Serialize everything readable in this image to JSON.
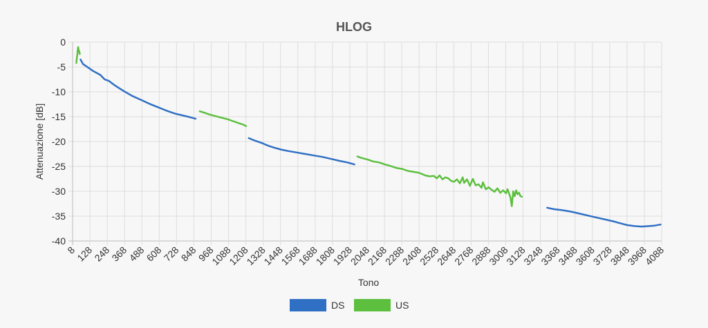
{
  "chart_data": {
    "type": "line",
    "title": "HLOG",
    "xlabel": "Tono",
    "ylabel": "Attenuazione [dB]",
    "xlim": [
      8,
      4088
    ],
    "ylim": [
      -40,
      0
    ],
    "x_ticks": [
      8,
      128,
      248,
      368,
      488,
      608,
      728,
      848,
      968,
      1088,
      1208,
      1328,
      1448,
      1568,
      1688,
      1808,
      1928,
      2048,
      2168,
      2288,
      2408,
      2528,
      2648,
      2768,
      2888,
      3008,
      3128,
      3248,
      3368,
      3488,
      3608,
      3728,
      3848,
      3968,
      4088
    ],
    "y_ticks": [
      0,
      -5,
      -10,
      -15,
      -20,
      -25,
      -30,
      -35,
      -40
    ],
    "grid": true,
    "legend_position": "bottom",
    "series": [
      {
        "name": "DS",
        "color": "#2f6fc4",
        "segments": [
          [
            [
              63,
              -3.5
            ],
            [
              80,
              -4.4
            ],
            [
              110,
              -5.0
            ],
            [
              150,
              -5.8
            ],
            [
              200,
              -6.6
            ],
            [
              230,
              -7.5
            ],
            [
              260,
              -7.8
            ],
            [
              300,
              -8.7
            ],
            [
              360,
              -9.8
            ],
            [
              420,
              -10.8
            ],
            [
              480,
              -11.6
            ],
            [
              540,
              -12.4
            ],
            [
              600,
              -13.1
            ],
            [
              660,
              -13.8
            ],
            [
              720,
              -14.4
            ],
            [
              780,
              -14.8
            ],
            [
              820,
              -15.1
            ],
            [
              860,
              -15.4
            ]
          ],
          [
            [
              1228,
              -19.3
            ],
            [
              1270,
              -19.8
            ],
            [
              1320,
              -20.3
            ],
            [
              1360,
              -20.8
            ],
            [
              1400,
              -21.2
            ],
            [
              1450,
              -21.6
            ],
            [
              1500,
              -21.9
            ],
            [
              1560,
              -22.2
            ],
            [
              1620,
              -22.5
            ],
            [
              1680,
              -22.8
            ],
            [
              1740,
              -23.1
            ],
            [
              1800,
              -23.5
            ],
            [
              1860,
              -23.9
            ],
            [
              1910,
              -24.2
            ],
            [
              1960,
              -24.6
            ]
          ],
          [
            [
              3295,
              -33.3
            ],
            [
              3340,
              -33.6
            ],
            [
              3400,
              -33.8
            ],
            [
              3460,
              -34.1
            ],
            [
              3520,
              -34.5
            ],
            [
              3580,
              -34.9
            ],
            [
              3640,
              -35.3
            ],
            [
              3700,
              -35.7
            ],
            [
              3760,
              -36.1
            ],
            [
              3810,
              -36.5
            ],
            [
              3850,
              -36.8
            ],
            [
              3900,
              -37.0
            ],
            [
              3950,
              -37.1
            ],
            [
              4000,
              -37.0
            ],
            [
              4040,
              -36.9
            ],
            [
              4080,
              -36.7
            ]
          ]
        ]
      },
      {
        "name": "US",
        "color": "#5cbf3e",
        "segments": [
          [
            [
              34,
              -4.2
            ],
            [
              38,
              -3.0
            ],
            [
              41,
              -2.5
            ],
            [
              44,
              -1.4
            ],
            [
              47,
              -1.0
            ],
            [
              50,
              -1.7
            ],
            [
              54,
              -1.8
            ],
            [
              58,
              -2.4
            ]
          ],
          [
            [
              888,
              -13.9
            ],
            [
              920,
              -14.2
            ],
            [
              960,
              -14.6
            ],
            [
              1000,
              -14.9
            ],
            [
              1040,
              -15.2
            ],
            [
              1080,
              -15.5
            ],
            [
              1120,
              -15.9
            ],
            [
              1160,
              -16.3
            ],
            [
              1190,
              -16.6
            ],
            [
              1210,
              -16.9
            ]
          ],
          [
            [
              1980,
              -23.0
            ],
            [
              2010,
              -23.3
            ],
            [
              2050,
              -23.6
            ],
            [
              2090,
              -24.0
            ],
            [
              2130,
              -24.2
            ],
            [
              2170,
              -24.6
            ],
            [
              2210,
              -24.9
            ],
            [
              2250,
              -25.3
            ],
            [
              2290,
              -25.5
            ],
            [
              2330,
              -25.9
            ],
            [
              2370,
              -26.1
            ],
            [
              2410,
              -26.3
            ],
            [
              2450,
              -26.8
            ],
            [
              2480,
              -27.0
            ],
            [
              2510,
              -26.9
            ],
            [
              2530,
              -27.4
            ],
            [
              2550,
              -26.8
            ],
            [
              2570,
              -27.6
            ],
            [
              2590,
              -27.2
            ],
            [
              2610,
              -27.4
            ],
            [
              2630,
              -27.9
            ],
            [
              2650,
              -28.1
            ],
            [
              2670,
              -27.6
            ],
            [
              2690,
              -28.4
            ],
            [
              2710,
              -27.2
            ],
            [
              2720,
              -28.3
            ],
            [
              2740,
              -27.6
            ],
            [
              2760,
              -28.9
            ],
            [
              2780,
              -27.5
            ],
            [
              2800,
              -28.8
            ],
            [
              2820,
              -28.6
            ],
            [
              2840,
              -29.3
            ],
            [
              2850,
              -28.2
            ],
            [
              2870,
              -29.6
            ],
            [
              2890,
              -29.2
            ],
            [
              2910,
              -29.7
            ],
            [
              2930,
              -30.1
            ],
            [
              2950,
              -29.4
            ],
            [
              2970,
              -30.3
            ],
            [
              2990,
              -29.8
            ],
            [
              3010,
              -30.4
            ],
            [
              3020,
              -29.6
            ],
            [
              3040,
              -31.2
            ],
            [
              3050,
              -33.0
            ],
            [
              3060,
              -30.0
            ],
            [
              3070,
              -31.0
            ],
            [
              3080,
              -29.8
            ],
            [
              3090,
              -30.6
            ],
            [
              3100,
              -30.3
            ],
            [
              3110,
              -31.0
            ],
            [
              3120,
              -31.1
            ]
          ]
        ]
      }
    ]
  }
}
